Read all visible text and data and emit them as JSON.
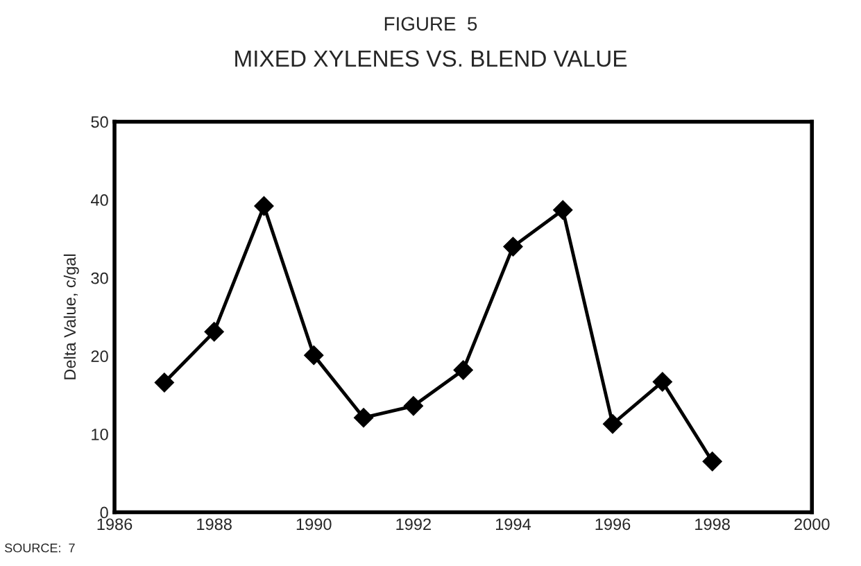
{
  "chart_data": {
    "type": "line",
    "title": "FIGURE  5",
    "subtitle": "MIXED XYLENES VS. BLEND VALUE",
    "ylabel": "Delta Value, c/gal",
    "x": [
      1987,
      1988,
      1989,
      1990,
      1991,
      1992,
      1993,
      1994,
      1995,
      1996,
      1997,
      1998
    ],
    "series": [
      {
        "color": "#000000",
        "values": [
          16.6,
          23.1,
          39.2,
          20.1,
          12.1,
          13.6,
          18.2,
          34.0,
          38.7,
          11.3,
          16.7,
          6.5
        ]
      }
    ],
    "xlim": [
      1986,
      2000
    ],
    "xticks": [
      1986,
      1988,
      1990,
      1992,
      1994,
      1996,
      1998,
      2000
    ],
    "ylim": [
      0,
      50
    ],
    "yticks": [
      0,
      10,
      20,
      30,
      40,
      50
    ],
    "marker": "diamond",
    "line_style": "solid",
    "grid": false,
    "annotations": [
      "SOURCE:  7"
    ]
  }
}
